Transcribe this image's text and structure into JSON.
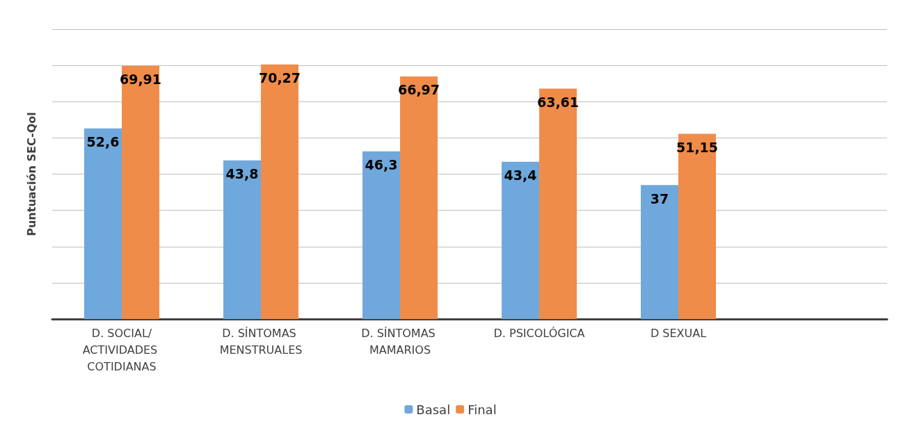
{
  "chart_data": {
    "type": "bar",
    "ylabel": "Puntuación SEC-Qol",
    "categories": [
      "D. SOCIAL/ACTIVIDADES COTIDIANAS",
      "D. SÍNTOMAS MENSTRUALES",
      "D. SÍNTOMAS MAMARIOS",
      "D. PSICOLÓGICA",
      "D SEXUAL",
      null
    ],
    "series": [
      {
        "name": "Basal",
        "color": "#6fa8dc",
        "values": [
          52.6,
          43.8,
          46.3,
          43.4,
          37,
          null
        ],
        "value_labels": [
          "52,6",
          "43,8",
          "46,3",
          "43,4",
          "37",
          null
        ]
      },
      {
        "name": "Final",
        "color": "#f08c4a",
        "values": [
          69.91,
          70.27,
          66.97,
          63.61,
          51.15,
          null
        ],
        "value_labels": [
          "69,91",
          "70,27",
          "66,97",
          "63,61",
          "51,15",
          null
        ]
      }
    ],
    "ylim": [
      0,
      80
    ],
    "yticks": [
      {
        "value": 0,
        "label": null
      },
      {
        "value": 10,
        "label": null
      },
      {
        "value": 20,
        "label": null
      },
      {
        "value": 30,
        "label": null
      },
      {
        "value": 40,
        "label": null
      },
      {
        "value": 50,
        "label": null
      },
      {
        "value": 60,
        "label": null
      },
      {
        "value": 70,
        "label": null
      },
      {
        "value": 80,
        "label": null
      }
    ],
    "grid": "y",
    "legend": "bottom",
    "tick_labels": "x"
  }
}
